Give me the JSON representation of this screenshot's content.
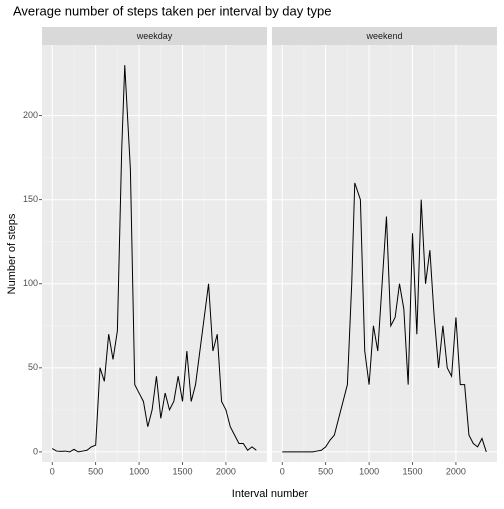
{
  "chart_data": {
    "type": "line",
    "facets": true,
    "title": "Average number of steps taken per interval by day type",
    "xlabel": "Interval number",
    "ylabel": "Number of steps",
    "x": [
      0,
      50,
      100,
      150,
      200,
      250,
      300,
      350,
      400,
      450,
      500,
      550,
      600,
      650,
      700,
      750,
      800,
      835,
      900,
      950,
      1000,
      1050,
      1100,
      1150,
      1200,
      1250,
      1300,
      1350,
      1400,
      1450,
      1500,
      1550,
      1600,
      1650,
      1700,
      1750,
      1800,
      1850,
      1900,
      1950,
      2000,
      2050,
      2100,
      2150,
      2200,
      2250,
      2300,
      2350
    ],
    "series": [
      {
        "name": "weekday",
        "color": "#000000",
        "values": [
          2,
          0.5,
          0.3,
          0.5,
          0,
          1.5,
          0,
          0.5,
          1,
          3,
          4,
          50,
          42,
          70,
          55,
          72,
          180,
          230,
          168,
          40,
          35,
          30,
          15,
          25,
          45,
          20,
          35,
          25,
          30,
          45,
          30,
          60,
          30,
          40,
          60,
          80,
          100,
          60,
          70,
          30,
          25,
          15,
          10,
          5,
          5,
          1,
          3,
          1
        ]
      },
      {
        "name": "weekend",
        "color": "#000000",
        "values": [
          0,
          0,
          0,
          0,
          0,
          0,
          0,
          0,
          0.5,
          1,
          3,
          7,
          10,
          20,
          30,
          40,
          100,
          160,
          150,
          60,
          40,
          75,
          60,
          100,
          140,
          75,
          80,
          100,
          85,
          40,
          130,
          70,
          150,
          100,
          120,
          80,
          50,
          75,
          50,
          45,
          80,
          40,
          40,
          10,
          5,
          3,
          8,
          0
        ]
      }
    ],
    "xlim": [
      -118,
      2473
    ],
    "ylim": [
      -6,
      242
    ],
    "xticks": [
      0,
      500,
      1000,
      1500,
      2000
    ],
    "yticks": [
      0,
      50,
      100,
      150,
      200
    ],
    "grid": true
  }
}
